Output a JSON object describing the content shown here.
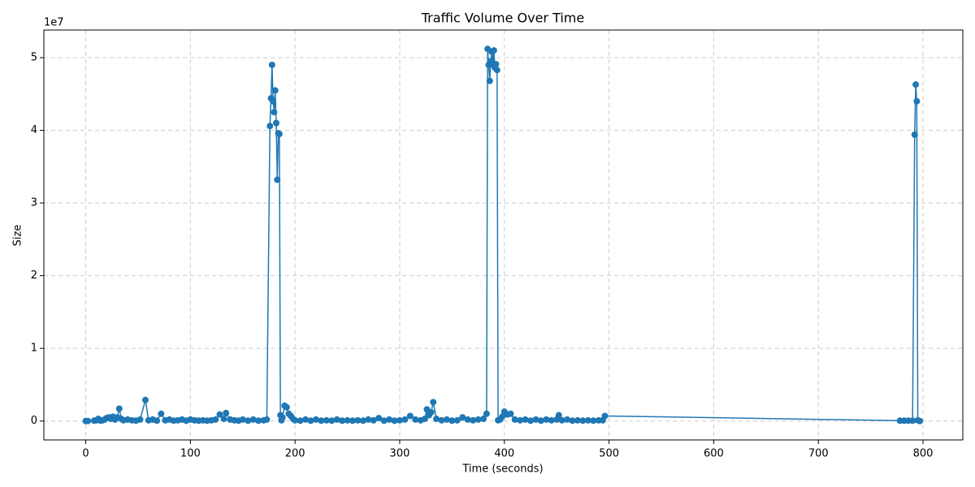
{
  "chart_data": {
    "type": "line",
    "title": "Traffic Volume Over Time",
    "x_label": "Time (seconds)",
    "y_label": "Size",
    "y_offset_label": "1e7",
    "series": [
      {
        "color": "#1f77b4",
        "x": [
          0,
          2,
          8,
          10,
          12,
          14,
          16,
          18,
          20,
          22,
          24,
          26,
          28,
          30,
          32,
          34,
          36,
          40,
          44,
          48,
          52,
          57,
          60,
          64,
          68,
          72,
          76,
          80,
          84,
          88,
          92,
          96,
          100,
          104,
          108,
          112,
          116,
          120,
          124,
          128,
          132,
          134,
          138,
          142,
          146,
          150,
          155,
          160,
          165,
          170,
          173,
          176,
          177,
          178,
          179,
          180,
          181,
          182,
          183,
          184,
          185,
          186,
          187,
          188,
          190,
          192,
          194,
          196,
          198,
          200,
          205,
          210,
          215,
          220,
          225,
          230,
          235,
          240,
          245,
          250,
          255,
          260,
          265,
          270,
          275,
          280,
          285,
          290,
          295,
          300,
          305,
          310,
          315,
          320,
          324,
          326,
          328,
          330,
          332,
          335,
          340,
          345,
          350,
          355,
          360,
          365,
          370,
          375,
          380,
          383,
          384,
          385,
          386,
          387,
          388,
          389,
          390,
          391,
          392,
          393,
          394,
          396,
          398,
          400,
          403,
          406,
          410,
          415,
          420,
          425,
          430,
          435,
          440,
          445,
          450,
          452,
          455,
          460,
          465,
          470,
          475,
          480,
          485,
          490,
          494,
          496,
          778,
          782,
          786,
          790,
          792,
          793,
          794,
          795,
          797
        ],
        "values": [
          0,
          0,
          50000,
          100000,
          300000,
          50000,
          100000,
          200000,
          400000,
          500000,
          300000,
          600000,
          200000,
          500000,
          1700000,
          300000,
          100000,
          200000,
          100000,
          50000,
          200000,
          2900000,
          100000,
          200000,
          50000,
          1000000,
          100000,
          200000,
          50000,
          100000,
          200000,
          50000,
          200000,
          100000,
          50000,
          100000,
          50000,
          100000,
          200000,
          900000,
          300000,
          1100000,
          200000,
          100000,
          50000,
          200000,
          50000,
          200000,
          50000,
          100000,
          200000,
          40600000,
          44400000,
          49000000,
          44000000,
          42500000,
          45500000,
          41000000,
          33200000,
          39600000,
          39500000,
          800000,
          100000,
          500000,
          2100000,
          1900000,
          1000000,
          700000,
          300000,
          100000,
          50000,
          200000,
          50000,
          200000,
          50000,
          100000,
          50000,
          200000,
          50000,
          100000,
          50000,
          100000,
          50000,
          200000,
          100000,
          400000,
          50000,
          200000,
          50000,
          100000,
          200000,
          700000,
          200000,
          100000,
          300000,
          1600000,
          800000,
          1200000,
          2600000,
          300000,
          100000,
          200000,
          50000,
          100000,
          500000,
          200000,
          100000,
          200000,
          300000,
          1000000,
          51200000,
          49000000,
          46800000,
          49500000,
          50800000,
          49000000,
          51000000,
          48600000,
          49100000,
          48300000,
          100000,
          200000,
          600000,
          1300000,
          900000,
          1000000,
          200000,
          100000,
          200000,
          50000,
          200000,
          50000,
          200000,
          100000,
          200000,
          800000,
          100000,
          200000,
          50000,
          100000,
          50000,
          100000,
          50000,
          100000,
          100000,
          700000,
          50000,
          50000,
          50000,
          50000,
          39400000,
          46300000,
          44000000,
          100000,
          0
        ]
      }
    ],
    "xlim": [
      -40,
      838
    ],
    "ylim": [
      -2600000,
      53800000
    ],
    "xticks": [
      0,
      100,
      200,
      300,
      400,
      500,
      600,
      700,
      800
    ],
    "yticks": [
      0,
      {
        "value": 10000000,
        "label": "1"
      },
      {
        "value": 20000000,
        "label": "2"
      },
      {
        "value": 30000000,
        "label": "3"
      },
      {
        "value": 40000000,
        "label": "4"
      },
      {
        "value": 50000000,
        "label": "5"
      }
    ],
    "grid": true
  }
}
